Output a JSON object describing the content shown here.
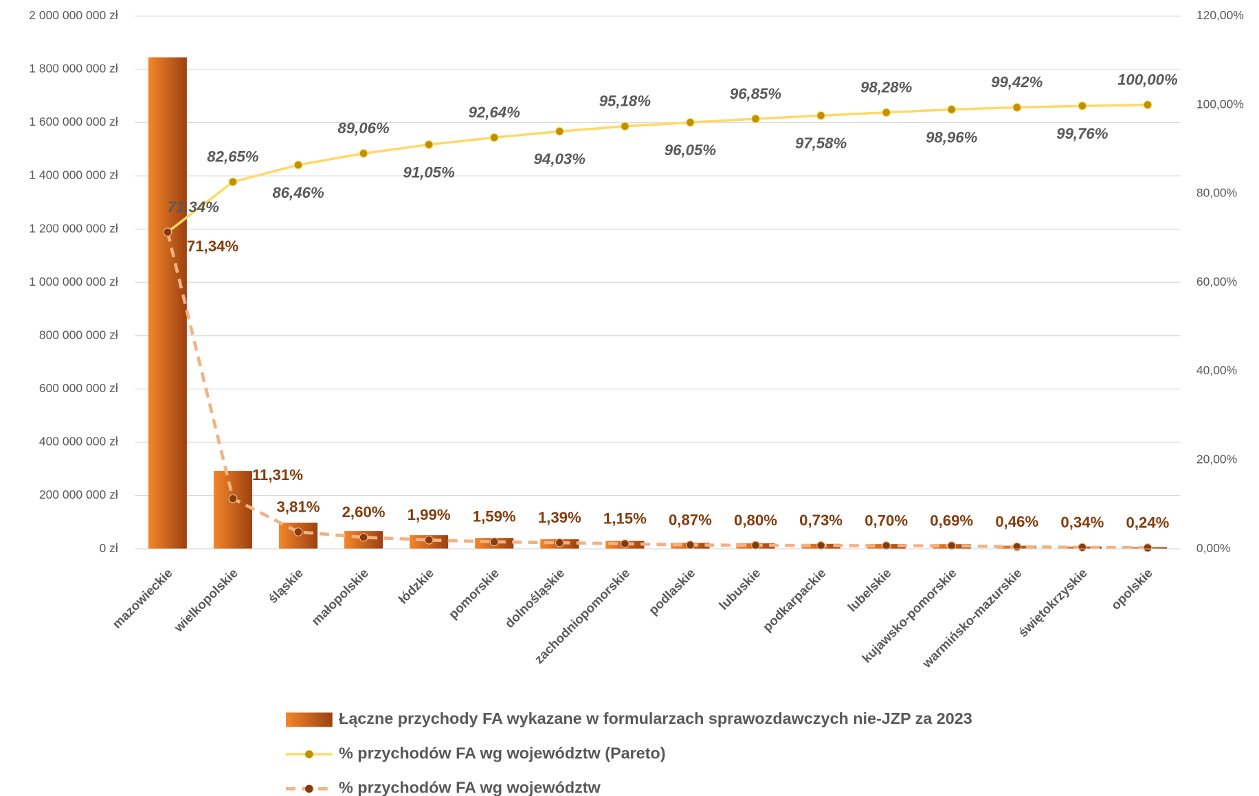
{
  "chart_data": {
    "type": "pareto",
    "categories": [
      "mazowieckie",
      "wielkopolskie",
      "śląskie",
      "małopolskie",
      "łódzkie",
      "pomorskie",
      "dolnośląskie",
      "zachodniopomorskie",
      "podlaskie",
      "lubuskie",
      "podkarpackie",
      "lubelskie",
      "kujawsko-pomorskie",
      "warmińsko-mazurskie",
      "świętokrzyskie",
      "opolskie"
    ],
    "ylim": [
      0,
      2000000000
    ],
    "yticks": [
      {
        "value": 0,
        "label": "0 zł"
      },
      {
        "value": 200000000,
        "label": "200 000 000 zł"
      },
      {
        "value": 400000000,
        "label": "400 000 000 zł"
      },
      {
        "value": 600000000,
        "label": "600 000 000 zł"
      },
      {
        "value": 800000000,
        "label": "800 000 000 zł"
      },
      {
        "value": 1000000000,
        "label": "1 000 000 000 zł"
      },
      {
        "value": 1200000000,
        "label": "1 200 000 000 zł"
      },
      {
        "value": 1400000000,
        "label": "1 400 000 000 zł"
      },
      {
        "value": 1600000000,
        "label": "1 600 000 000 zł"
      },
      {
        "value": 1800000000,
        "label": "1 800 000 000 zł"
      },
      {
        "value": 2000000000,
        "label": "2 000 000 000 zł"
      }
    ],
    "y2lim": [
      0,
      120
    ],
    "y2ticks": [
      {
        "value": 0,
        "label": "0,00%"
      },
      {
        "value": 20,
        "label": "20,00%"
      },
      {
        "value": 40,
        "label": "40,00%"
      },
      {
        "value": 60,
        "label": "60,00%"
      },
      {
        "value": 80,
        "label": "80,00%"
      },
      {
        "value": 100,
        "label": "100,00%"
      },
      {
        "value": 120,
        "label": "120,00%"
      }
    ],
    "grid": true,
    "legend": "bottom",
    "series": [
      {
        "name": "Łączne przychody FA wykazane w formularzach sprawozdawczych nie-JZP za 2023",
        "type": "bar",
        "color": "#e2701f",
        "values": [
          1845000000,
          292000000,
          98500000,
          67000000,
          51500000,
          41000000,
          36000000,
          29700000,
          22500000,
          20700000,
          18900000,
          18100000,
          17800000,
          11900000,
          8800000,
          6200000
        ]
      },
      {
        "name": "% przychodów FA wg województw (Pareto)",
        "type": "line",
        "axis": "y2",
        "color": "#ffd966",
        "marker_color": "#bf9000",
        "values": [
          71.34,
          82.65,
          86.46,
          89.06,
          91.05,
          92.64,
          94.03,
          95.18,
          96.05,
          96.85,
          97.58,
          98.28,
          98.96,
          99.42,
          99.76,
          100.0
        ],
        "value_labels": [
          "71,34%",
          "82,65%",
          "86,46%",
          "89,06%",
          "91,05%",
          "92,64%",
          "94,03%",
          "95,18%",
          "96,05%",
          "96,85%",
          "97,58%",
          "98,28%",
          "98,96%",
          "99,42%",
          "99,76%",
          "100,00%"
        ]
      },
      {
        "name": "% przychodów FA wg województw",
        "type": "line",
        "axis": "y2",
        "color": "#f4b183",
        "marker_color": "#843c0c",
        "dash": true,
        "values": [
          71.34,
          11.31,
          3.81,
          2.6,
          1.99,
          1.59,
          1.39,
          1.15,
          0.87,
          0.8,
          0.73,
          0.7,
          0.69,
          0.46,
          0.34,
          0.24
        ],
        "value_labels": [
          "71,34%",
          "11,31%",
          "3,81%",
          "2,60%",
          "1,99%",
          "1,59%",
          "1,39%",
          "1,15%",
          "0,87%",
          "0,80%",
          "0,73%",
          "0,70%",
          "0,69%",
          "0,46%",
          "0,34%",
          "0,24%"
        ]
      }
    ]
  }
}
